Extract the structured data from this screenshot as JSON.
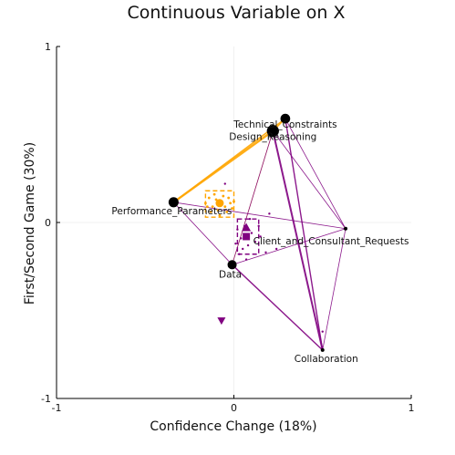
{
  "chart_data": {
    "type": "scatter",
    "title": "Continuous Variable on X",
    "xlabel": "Confidence Change (18%)",
    "ylabel": "First/Second Game (30%)",
    "xlim": [
      -1,
      1
    ],
    "ylim": [
      -1,
      1
    ],
    "xticks": [
      "-1",
      "0",
      "1"
    ],
    "yticks": [
      "-1",
      "0",
      "1"
    ],
    "grid": true,
    "legend": "none",
    "colors": {
      "group_a": "#FFA500",
      "group_b": "#800080",
      "node": "#000000"
    },
    "nodes": [
      {
        "label": "Technical_Constraints",
        "x": 0.29,
        "y": 0.59
      },
      {
        "label": "Design_Reasoning",
        "x": 0.22,
        "y": 0.52
      },
      {
        "label": "Performance_Parameters",
        "x": -0.34,
        "y": 0.115
      },
      {
        "label": "Client_and_Consultant_Requests",
        "x": 0.63,
        "y": -0.035
      },
      {
        "label": "Data",
        "x": -0.01,
        "y": -0.24
      },
      {
        "label": "Collaboration",
        "x": 0.5,
        "y": -0.725
      }
    ],
    "edges_group_a": [
      {
        "from": "Performance_Parameters",
        "to": "Design_Reasoning",
        "weight": 2.4
      },
      {
        "from": "Performance_Parameters",
        "to": "Technical_Constraints",
        "weight": 1.6
      },
      {
        "from": "Design_Reasoning",
        "to": "Technical_Constraints",
        "weight": 1.4
      },
      {
        "from": "Design_Reasoning",
        "to": "Data",
        "weight": 0.7
      }
    ],
    "edges_group_b": [
      {
        "from": "Design_Reasoning",
        "to": "Collaboration",
        "weight": 2.0
      },
      {
        "from": "Technical_Constraints",
        "to": "Collaboration",
        "weight": 1.4
      },
      {
        "from": "Design_Reasoning",
        "to": "Client_and_Consultant_Requests",
        "weight": 0.8
      },
      {
        "from": "Technical_Constraints",
        "to": "Client_and_Consultant_Requests",
        "weight": 0.8
      },
      {
        "from": "Performance_Parameters",
        "to": "Client_and_Consultant_Requests",
        "weight": 0.8
      },
      {
        "from": "Performance_Parameters",
        "to": "Data",
        "weight": 0.8
      },
      {
        "from": "Data",
        "to": "Collaboration",
        "weight": 1.4
      },
      {
        "from": "Data",
        "to": "Client_and_Consultant_Requests",
        "weight": 0.8
      },
      {
        "from": "Collaboration",
        "to": "Client_and_Consultant_Requests",
        "weight": 0.8
      },
      {
        "from": "Design_Reasoning",
        "to": "Data",
        "weight": 0.8
      }
    ],
    "group_a_points": [
      {
        "x": -0.16,
        "y": 0.11
      },
      {
        "x": -0.14,
        "y": 0.14
      },
      {
        "x": -0.12,
        "y": 0.09
      },
      {
        "x": -0.1,
        "y": 0.13
      },
      {
        "x": -0.09,
        "y": 0.07
      },
      {
        "x": -0.07,
        "y": 0.12
      },
      {
        "x": -0.05,
        "y": 0.09
      },
      {
        "x": -0.03,
        "y": 0.14
      },
      {
        "x": -0.01,
        "y": 0.08
      },
      {
        "x": -0.13,
        "y": 0.06
      },
      {
        "x": -0.06,
        "y": 0.15
      },
      {
        "x": -0.02,
        "y": 0.11
      },
      {
        "x": -0.11,
        "y": 0.16
      },
      {
        "x": -0.08,
        "y": 0.04
      },
      {
        "x": 0.0,
        "y": 0.12
      },
      {
        "x": -0.04,
        "y": 0.06
      },
      {
        "x": -0.15,
        "y": 0.09
      },
      {
        "x": -0.09,
        "y": 0.1
      }
    ],
    "group_b_points": [
      {
        "x": 0.02,
        "y": -0.04
      },
      {
        "x": 0.04,
        "y": -0.09
      },
      {
        "x": 0.06,
        "y": -0.02
      },
      {
        "x": 0.08,
        "y": -0.13
      },
      {
        "x": 0.1,
        "y": -0.06
      },
      {
        "x": 0.12,
        "y": -0.11
      },
      {
        "x": 0.05,
        "y": -0.15
      },
      {
        "x": 0.03,
        "y": -0.18
      },
      {
        "x": 0.15,
        "y": -0.08
      },
      {
        "x": 0.18,
        "y": -0.17
      },
      {
        "x": 0.09,
        "y": 0.02
      },
      {
        "x": 0.01,
        "y": -0.12
      },
      {
        "x": 0.14,
        "y": -0.02
      },
      {
        "x": 0.07,
        "y": -0.21
      },
      {
        "x": -0.05,
        "y": 0.22
      },
      {
        "x": 0.24,
        "y": -0.15
      },
      {
        "x": 0.5,
        "y": -0.62
      },
      {
        "x": 0.2,
        "y": 0.05
      }
    ],
    "group_a_mean": {
      "x": -0.08,
      "y": 0.11,
      "ci_x": [
        -0.16,
        0.0
      ],
      "ci_y": [
        0.03,
        0.18
      ]
    },
    "group_b_mean": {
      "x": 0.07,
      "y": -0.08,
      "ci_x": [
        0.02,
        0.14
      ],
      "ci_y": [
        -0.18,
        0.02
      ]
    },
    "group_b_extra_mean": {
      "x": -0.07,
      "y": -0.56
    }
  }
}
